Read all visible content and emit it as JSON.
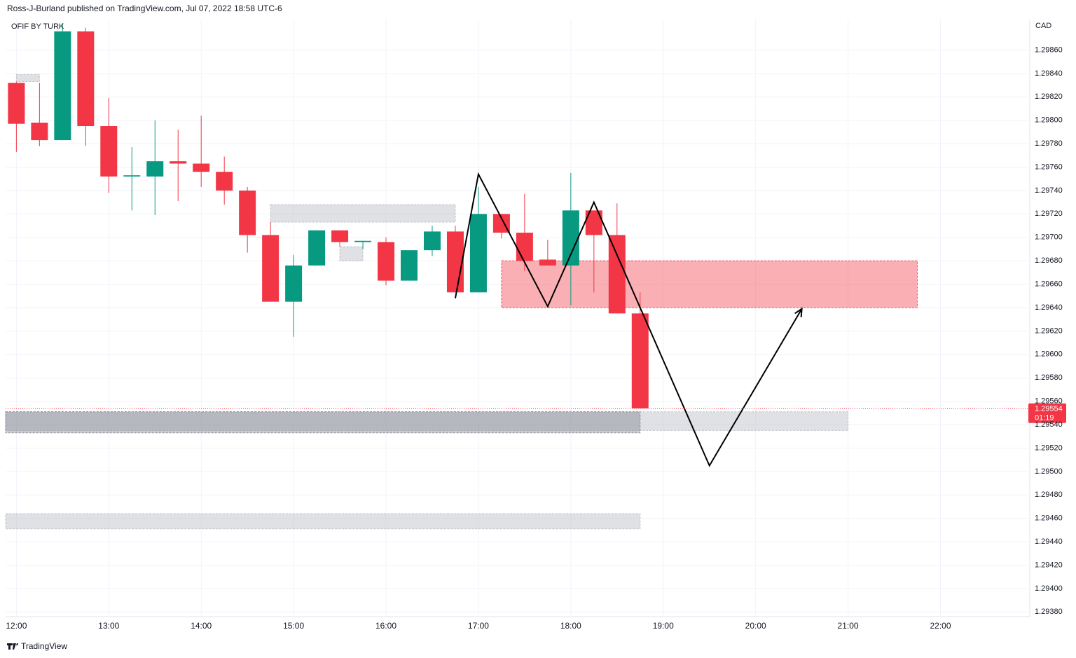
{
  "header": "Ross-J-Burland published on TradingView.com, Jul 07, 2022 18:58 UTC-6",
  "footer": "TradingView",
  "chart_data": {
    "type": "candlestick",
    "title": "OFIF BY TURK",
    "y_axis_label": "CAD",
    "x": [
      "12:00",
      "12:15",
      "12:30",
      "12:45",
      "13:00",
      "13:15",
      "13:30",
      "13:45",
      "14:00",
      "14:15",
      "14:30",
      "14:45",
      "15:00",
      "15:15",
      "15:30",
      "15:45",
      "16:00",
      "16:15",
      "16:30",
      "16:45",
      "17:00",
      "17:15",
      "17:30",
      "17:45",
      "18:00",
      "18:15",
      "18:30",
      "18:45"
    ],
    "open": [
      1.29832,
      1.29798,
      1.29783,
      1.29876,
      1.29795,
      1.29752,
      1.29752,
      1.29765,
      1.29763,
      1.29756,
      1.2974,
      1.29702,
      1.29645,
      1.29676,
      1.29706,
      1.29696,
      1.29696,
      1.29663,
      1.29689,
      1.29705,
      1.29653,
      1.2972,
      1.29704,
      1.29681,
      1.29676,
      1.29723,
      1.29702,
      1.29635
    ],
    "high": [
      1.29833,
      1.29832,
      1.29883,
      1.29879,
      1.29819,
      1.29777,
      1.298,
      1.29792,
      1.29804,
      1.29769,
      1.29743,
      1.29713,
      1.29685,
      1.29706,
      1.29706,
      1.29697,
      1.297,
      1.29689,
      1.2971,
      1.2971,
      1.29743,
      1.2972,
      1.29737,
      1.29698,
      1.29755,
      1.29723,
      1.29729,
      1.29653
    ],
    "low": [
      1.29773,
      1.29778,
      1.29783,
      1.29778,
      1.29738,
      1.29723,
      1.29719,
      1.29731,
      1.29743,
      1.29728,
      1.29687,
      1.29645,
      1.29615,
      1.29676,
      1.29692,
      1.2969,
      1.29659,
      1.29663,
      1.29684,
      1.29653,
      1.29653,
      1.29699,
      1.29671,
      1.29676,
      1.29642,
      1.29653,
      1.29635,
      1.29554
    ],
    "close": [
      1.29797,
      1.29783,
      1.29876,
      1.29795,
      1.29752,
      1.29753,
      1.29765,
      1.29763,
      1.29756,
      1.2974,
      1.29702,
      1.29645,
      1.29676,
      1.29706,
      1.29696,
      1.29697,
      1.29663,
      1.29689,
      1.29705,
      1.29653,
      1.2972,
      1.29704,
      1.2968,
      1.29676,
      1.29723,
      1.29702,
      1.29635,
      1.29554
    ],
    "up_color": "#089981",
    "down_color": "#f23645",
    "xlim": [
      "11:53",
      "22:58"
    ],
    "xticks": [
      "12:00",
      "13:00",
      "14:00",
      "15:00",
      "16:00",
      "17:00",
      "18:00",
      "19:00",
      "20:00",
      "21:00",
      "22:00"
    ],
    "ylim": [
      1.29376,
      1.29886
    ],
    "yticks": [
      {
        "value": 1.2938,
        "label": "1.29380"
      },
      {
        "value": 1.294,
        "label": "1.29400"
      },
      {
        "value": 1.2942,
        "label": "1.29420"
      },
      {
        "value": 1.2944,
        "label": "1.29440"
      },
      {
        "value": 1.2946,
        "label": "1.29460"
      },
      {
        "value": 1.2948,
        "label": "1.29480"
      },
      {
        "value": 1.295,
        "label": "1.29500"
      },
      {
        "value": 1.2952,
        "label": "1.29520"
      },
      {
        "value": 1.2954,
        "label": "1.29540"
      },
      {
        "value": 1.2956,
        "label": "1.29560"
      },
      {
        "value": 1.2958,
        "label": "1.29580"
      },
      {
        "value": 1.296,
        "label": "1.29600"
      },
      {
        "value": 1.2962,
        "label": "1.29620"
      },
      {
        "value": 1.2964,
        "label": "1.29640"
      },
      {
        "value": 1.2966,
        "label": "1.29660"
      },
      {
        "value": 1.2968,
        "label": "1.29680"
      },
      {
        "value": 1.297,
        "label": "1.29700"
      },
      {
        "value": 1.2972,
        "label": "1.29720"
      },
      {
        "value": 1.2974,
        "label": "1.29740"
      },
      {
        "value": 1.2976,
        "label": "1.29760"
      },
      {
        "value": 1.2978,
        "label": "1.29780"
      },
      {
        "value": 1.298,
        "label": "1.29800"
      },
      {
        "value": 1.2982,
        "label": "1.29820"
      },
      {
        "value": 1.2984,
        "label": "1.29840"
      },
      {
        "value": 1.2986,
        "label": "1.29860"
      }
    ],
    "grid": true,
    "last_price": 1.29554,
    "countdown": "01:19",
    "last_price_color": "#f23645",
    "zones": [
      {
        "from": "12:00",
        "to": "12:15",
        "top": 1.29839,
        "bottom": 1.29833,
        "color": "#b2b5be"
      },
      {
        "from": "14:45",
        "to": "16:45",
        "top": 1.29728,
        "bottom": 1.29713,
        "color": "#b2b5be"
      },
      {
        "from": "15:30",
        "to": "15:45",
        "top": 1.29692,
        "bottom": 1.2968,
        "color": "#b2b5be"
      },
      {
        "from": "17:15",
        "to": "21:45",
        "top": 1.2968,
        "bottom": 1.2964,
        "color": "#f23645"
      },
      {
        "from": "11:53",
        "to": "21:00",
        "top": 1.29551,
        "bottom": 1.29535,
        "color": "#b2b5be"
      },
      {
        "from": "11:53",
        "to": "18:45",
        "top": 1.29551,
        "bottom": 1.29533,
        "color": "#787b86"
      },
      {
        "from": "11:53",
        "to": "18:45",
        "top": 1.29464,
        "bottom": 1.29451,
        "color": "#b2b5be"
      }
    ],
    "path": {
      "x": [
        "16:45",
        "17:00",
        "17:45",
        "18:15",
        "19:30",
        "20:30"
      ],
      "values": [
        1.29648,
        1.29754,
        1.29641,
        1.2973,
        1.29505,
        1.29639
      ],
      "color": "#000000"
    }
  }
}
